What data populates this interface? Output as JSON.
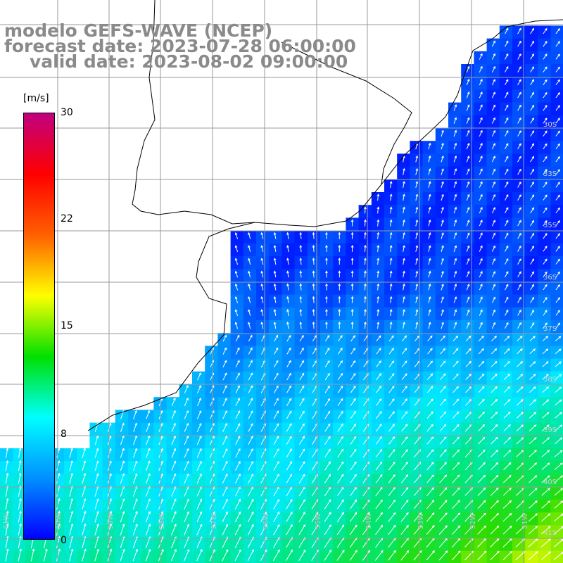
{
  "title": {
    "model": "modelo GEFS-WAVE (NCEP)",
    "forecast": "forecast date: 2023-07-28 06:00:00",
    "valid": "valid date: 2023-08-02 09:00:00"
  },
  "colorbar": {
    "unit": "[m/s]",
    "ticks": [
      "30",
      "22",
      "15",
      "8",
      "0"
    ],
    "min": 0,
    "max": 30,
    "colors": [
      "#0000ff",
      "#0090ff",
      "#00ffff",
      "#00e000",
      "#ffff00",
      "#ff6000",
      "#ff0000",
      "#c00080"
    ]
  },
  "axes": {
    "lat_labels": [
      "30S",
      "33S",
      "35S",
      "36S",
      "37S",
      "38S",
      "39S",
      "40S",
      "41S"
    ],
    "lon_labels": [
      "61W",
      "60W",
      "59W",
      "58W",
      "57W",
      "56W",
      "55W",
      "54W",
      "53W",
      "52W",
      "51W"
    ]
  },
  "colors": {
    "land": "#ffffff",
    "grid": "#9a9a9a",
    "coast": "#000000",
    "arrows": "#ffffff",
    "title": "#8a8a8a"
  }
}
